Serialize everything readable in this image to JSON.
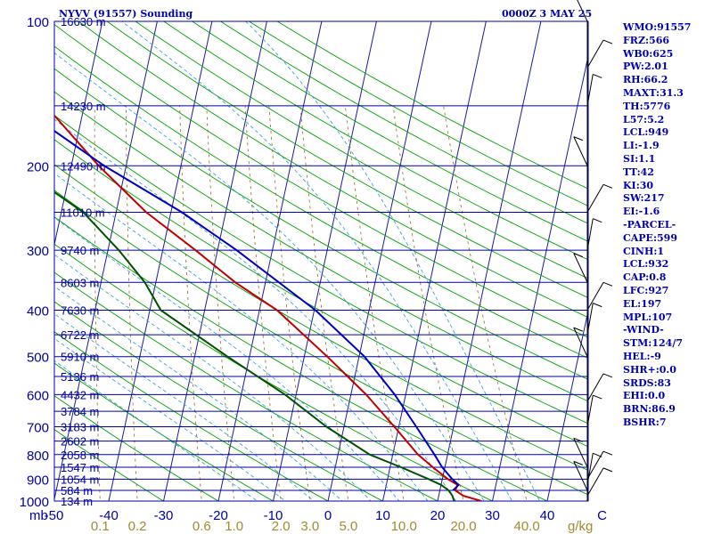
{
  "header": {
    "station": "NYVV (91557) Sounding",
    "time": "0000Z  3 MAY 25"
  },
  "indices": [
    "WMO:91557",
    "FRZ:566",
    "WB0:625",
    "PW:2.01",
    "RH:66.2",
    "MAXT:31.3",
    "TH:5776",
    "L57:5.2",
    "LCL:949",
    "LI:-1.9",
    "SI:1.1",
    "TT:42",
    "KI:30",
    "SW:217",
    "EI:-1.6",
    "-PARCEL-",
    "CAPE:599",
    "CINH:1",
    "LCL:932",
    "CAP:0.8",
    "LFC:927",
    "EL:197",
    "MPL:107",
    "-WIND-",
    "STM:124/7",
    "HEL:-9",
    "SHR+:0.0",
    "SRDS:83",
    "EHI:0.0",
    "BRN:86.9",
    "BSHR:7"
  ],
  "colors": {
    "isobar": "#0000a0",
    "isotherm": "#1a1a9a",
    "dry_adiabat": "#00a000",
    "moist_adiabat": "#3ca0e0",
    "mixing_ratio": "#8a6a20",
    "temperature": "#c00000",
    "dewpoint": "#005000",
    "parcel": "#0000c0",
    "axis_label": "#0000a0",
    "mixing_label": "#a08a30"
  },
  "chart_data": {
    "type": "line",
    "diagram": "skew-T log-P",
    "pressure_axis": {
      "range": [
        1000,
        100
      ],
      "scale": "log",
      "tick_labels": [
        "100",
        "200",
        "300",
        "400",
        "500",
        "600",
        "700",
        "800",
        "900",
        "1000"
      ]
    },
    "temperature_axis": {
      "range": [
        -50,
        50
      ],
      "tick_labels": [
        "-50",
        "-40",
        "-30",
        "-20",
        "-10",
        "0",
        "10",
        "20",
        "30",
        "40",
        "C"
      ],
      "unit_label": "mb"
    },
    "mixing_ratio_labels": [
      "0.1",
      "0.2",
      "0.6",
      "1.0",
      "2.0",
      "3.0",
      "5.0",
      "10.0",
      "20.0",
      "40.0"
    ],
    "mixing_ratio_unit": "g/kg",
    "height_levels": [
      {
        "p": 100,
        "label": "16630 m"
      },
      {
        "p": 150,
        "label": "14230 m"
      },
      {
        "p": 200,
        "label": "12490 m"
      },
      {
        "p": 250,
        "label": "11010 m"
      },
      {
        "p": 300,
        "label": "9740 m"
      },
      {
        "p": 350,
        "label": "8603 m"
      },
      {
        "p": 400,
        "label": "7630 m"
      },
      {
        "p": 450,
        "label": "6722 m"
      },
      {
        "p": 500,
        "label": "5910 m"
      },
      {
        "p": 550,
        "label": "5136 m"
      },
      {
        "p": 600,
        "label": "4432 m"
      },
      {
        "p": 650,
        "label": "3784 m"
      },
      {
        "p": 700,
        "label": "3183 m"
      },
      {
        "p": 750,
        "label": "2602 m"
      },
      {
        "p": 800,
        "label": "2058 m"
      },
      {
        "p": 850,
        "label": "1547 m"
      },
      {
        "p": 900,
        "label": "1054 m"
      },
      {
        "p": 950,
        "label": "584 m"
      },
      {
        "p": 1000,
        "label": "134 m"
      }
    ],
    "series": [
      {
        "key": "temperature",
        "points": [
          [
            1000,
            28.0
          ],
          [
            975,
            24.5
          ],
          [
            950,
            22.8
          ],
          [
            925,
            23.0
          ],
          [
            900,
            21.0
          ],
          [
            850,
            17.8
          ],
          [
            800,
            14.6
          ],
          [
            700,
            9.2
          ],
          [
            600,
            2.8
          ],
          [
            500,
            -5.8
          ],
          [
            400,
            -16.8
          ],
          [
            350,
            -25.5
          ],
          [
            300,
            -34.0
          ],
          [
            250,
            -44.5
          ],
          [
            200,
            -55.0
          ],
          [
            150,
            -67.0
          ],
          [
            125,
            -71.0
          ],
          [
            100,
            -74.5
          ]
        ]
      },
      {
        "key": "dewpoint",
        "points": [
          [
            1000,
            23.0
          ],
          [
            975,
            22.5
          ],
          [
            950,
            21.6
          ],
          [
            925,
            20.0
          ],
          [
            900,
            17.5
          ],
          [
            850,
            12.0
          ],
          [
            800,
            5.8
          ],
          [
            700,
            -3.2
          ],
          [
            600,
            -12.0
          ],
          [
            500,
            -24.0
          ],
          [
            400,
            -38.0
          ],
          [
            350,
            -42.0
          ],
          [
            300,
            -48.0
          ],
          [
            250,
            -56.0
          ],
          [
            200,
            -70.0
          ],
          [
            150,
            -72.0
          ],
          [
            120,
            -79.0
          ],
          [
            100,
            -82.0
          ]
        ]
      },
      {
        "key": "parcel",
        "points": [
          [
            950,
            22.4
          ],
          [
            925,
            23.2
          ],
          [
            900,
            21.8
          ],
          [
            850,
            19.5
          ],
          [
            800,
            17.6
          ],
          [
            700,
            13.2
          ],
          [
            600,
            8.0
          ],
          [
            500,
            1.0
          ],
          [
            400,
            -9.8
          ],
          [
            300,
            -26.5
          ],
          [
            250,
            -38.0
          ],
          [
            200,
            -54.0
          ],
          [
            150,
            -72.0
          ],
          [
            110,
            -80.5
          ]
        ]
      }
    ],
    "wind_barbs": [
      {
        "p": 975
      },
      {
        "p": 950
      },
      {
        "p": 925
      },
      {
        "p": 900
      },
      {
        "p": 850
      },
      {
        "p": 700
      },
      {
        "p": 620
      },
      {
        "p": 500
      },
      {
        "p": 450
      },
      {
        "p": 400
      },
      {
        "p": 350
      },
      {
        "p": 300
      },
      {
        "p": 250
      },
      {
        "p": 200
      },
      {
        "p": 150
      },
      {
        "p": 125
      },
      {
        "p": 100
      }
    ],
    "grid": true
  }
}
